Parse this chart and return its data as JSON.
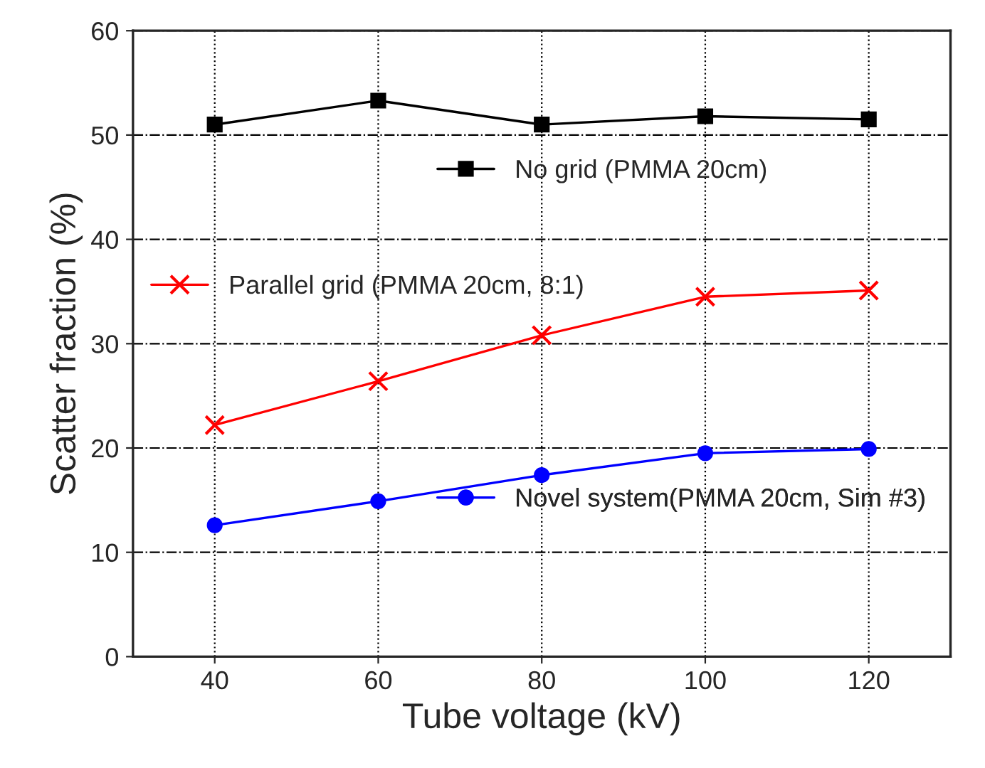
{
  "chart_data": {
    "type": "line",
    "xlabel": "Tube voltage (kV)",
    "ylabel": "Scatter fraction (%)",
    "x": [
      40,
      60,
      80,
      100,
      120
    ],
    "series": [
      {
        "name": "No grid (PMMA 20cm)",
        "color": "#000000",
        "marker": "square",
        "values": [
          51.0,
          53.3,
          51.0,
          51.8,
          51.5
        ]
      },
      {
        "name": "Parallel grid (PMMA 20cm, 8:1)",
        "color": "#ff0000",
        "marker": "cross",
        "values": [
          22.2,
          26.4,
          30.8,
          34.5,
          35.1
        ]
      },
      {
        "name": "Novel system(PMMA 20cm, Sim #3)",
        "color": "#0000ff",
        "marker": "circle",
        "values": [
          12.6,
          14.9,
          17.4,
          19.5,
          19.9
        ]
      }
    ],
    "xlim": [
      30,
      130
    ],
    "xticks": [
      40,
      60,
      80,
      100,
      120
    ],
    "ylim": [
      0,
      60
    ],
    "yticks": [
      0,
      10,
      20,
      30,
      40,
      50,
      60
    ],
    "grid": true,
    "legend": "center",
    "line_style": "solid"
  }
}
